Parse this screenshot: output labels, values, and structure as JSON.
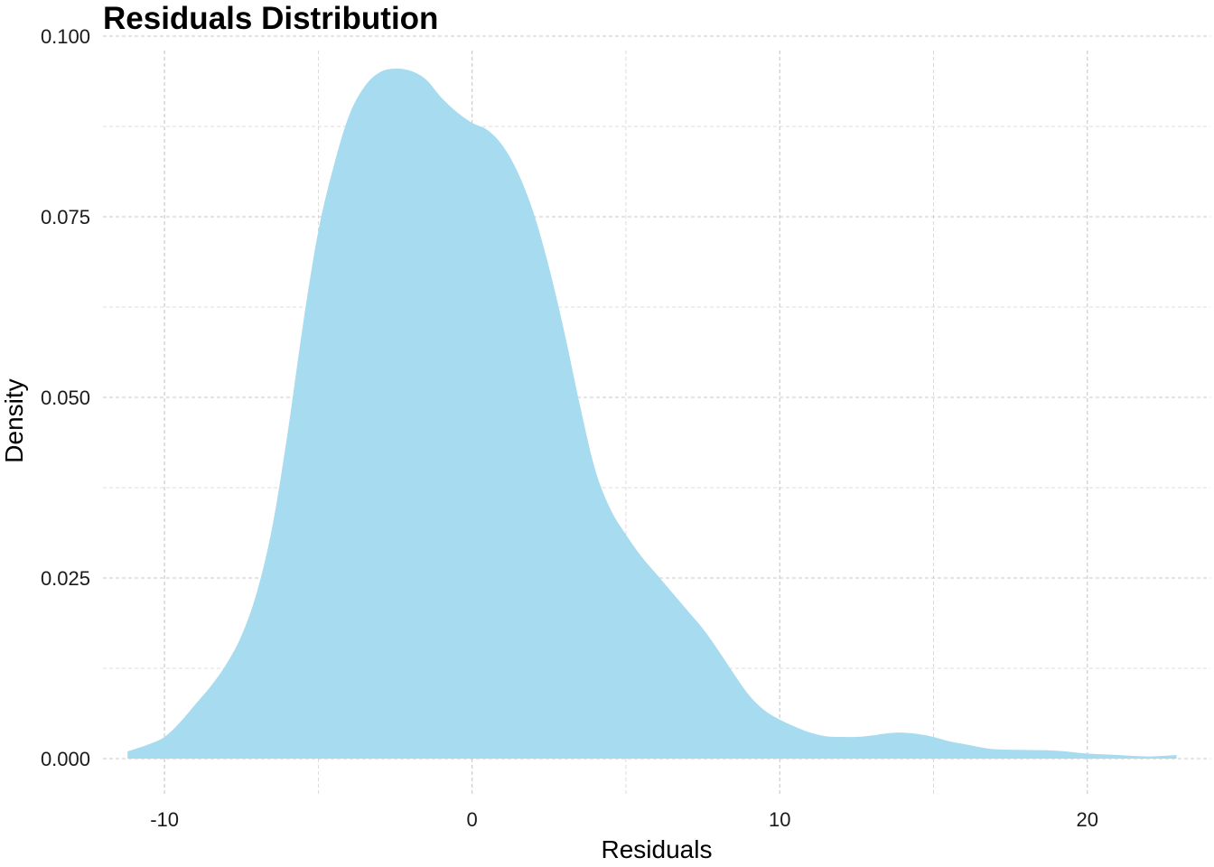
{
  "chart_data": {
    "type": "area",
    "title": "Residuals Distribution",
    "xlabel": "Residuals",
    "ylabel": "Density",
    "xlim": [
      -12.0,
      24.0
    ],
    "ylim": [
      -0.005,
      0.1
    ],
    "x_ticks": [
      -10,
      0,
      10,
      20
    ],
    "x_tick_labels": [
      "-10",
      "0",
      "10",
      "20"
    ],
    "x_minor_ticks": [
      -5,
      5,
      15
    ],
    "y_ticks": [
      0.0,
      0.025,
      0.05,
      0.075,
      0.1
    ],
    "y_tick_labels": [
      "0.000",
      "0.025",
      "0.050",
      "0.075",
      "0.100"
    ],
    "y_minor_ticks": [
      0.0125,
      0.0375,
      0.0625,
      0.0875
    ],
    "grid": true,
    "grid_style": "dashed",
    "fill_color": "#a7dbef",
    "series": [
      {
        "x": [
          -11.2,
          -10.5,
          -10.0,
          -9.5,
          -9.0,
          -8.5,
          -8.0,
          -7.5,
          -7.0,
          -6.5,
          -6.0,
          -5.5,
          -5.0,
          -4.5,
          -4.0,
          -3.5,
          -3.0,
          -2.5,
          -2.0,
          -1.5,
          -1.0,
          -0.5,
          0.0,
          0.5,
          1.0,
          1.5,
          2.0,
          2.5,
          3.0,
          3.5,
          4.0,
          4.5,
          5.0,
          5.5,
          6.0,
          6.5,
          7.0,
          7.5,
          8.0,
          8.5,
          9.0,
          9.5,
          10.0,
          10.5,
          11.0,
          11.5,
          12.0,
          12.5,
          13.0,
          13.5,
          14.0,
          14.5,
          15.0,
          15.5,
          16.0,
          16.5,
          17.0,
          18.0,
          19.0,
          20.0,
          21.0,
          22.0,
          22.9
        ],
        "y": [
          0.001,
          0.002,
          0.003,
          0.005,
          0.0075,
          0.01,
          0.013,
          0.017,
          0.023,
          0.032,
          0.045,
          0.06,
          0.073,
          0.082,
          0.089,
          0.093,
          0.095,
          0.0955,
          0.0952,
          0.094,
          0.0915,
          0.0895,
          0.088,
          0.087,
          0.0848,
          0.081,
          0.0755,
          0.068,
          0.059,
          0.049,
          0.04,
          0.0345,
          0.031,
          0.028,
          0.0255,
          0.023,
          0.0205,
          0.018,
          0.015,
          0.0118,
          0.0088,
          0.0067,
          0.0054,
          0.0044,
          0.0036,
          0.0031,
          0.003,
          0.003,
          0.0032,
          0.0035,
          0.0036,
          0.0034,
          0.003,
          0.0024,
          0.002,
          0.0016,
          0.0013,
          0.0012,
          0.0011,
          0.0007,
          0.0005,
          0.0003,
          0.0005
        ]
      }
    ]
  }
}
